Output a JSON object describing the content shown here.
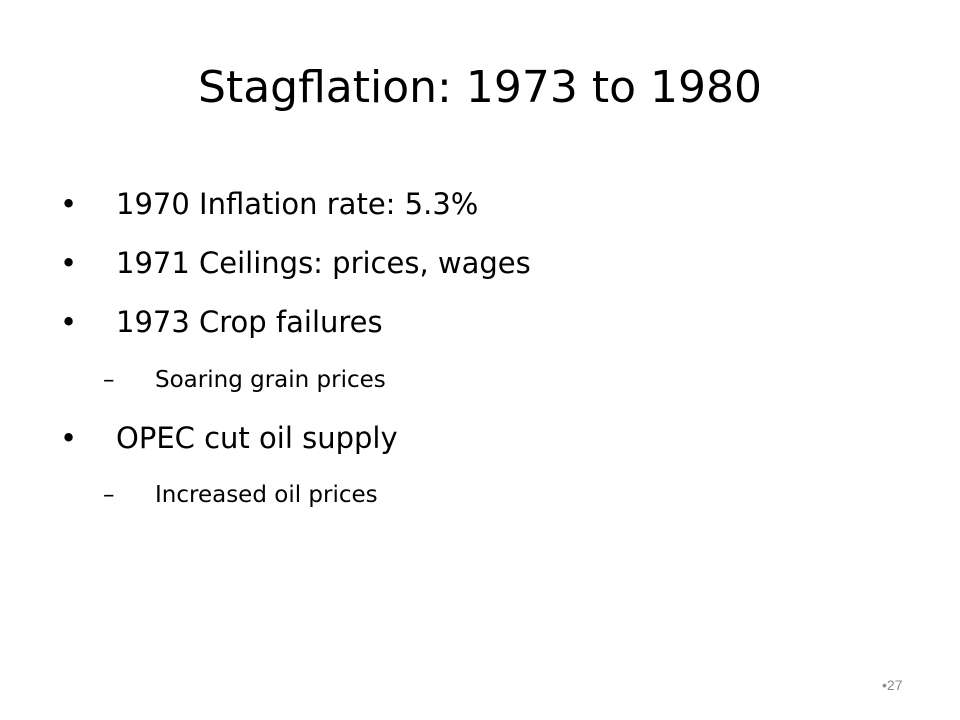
{
  "slide": {
    "title": "Stagflation: 1973 to 1980",
    "bullet_marker": "•",
    "sub_marker": "–",
    "items": [
      {
        "text": "1970 Inflation rate: 5.3%"
      },
      {
        "text": "1971 Ceilings: prices, wages"
      },
      {
        "text": "1973 Crop failures",
        "sub": "Soaring grain prices"
      },
      {
        "text": "OPEC cut oil supply",
        "sub": "Increased oil prices"
      }
    ],
    "page_number": "•27"
  }
}
